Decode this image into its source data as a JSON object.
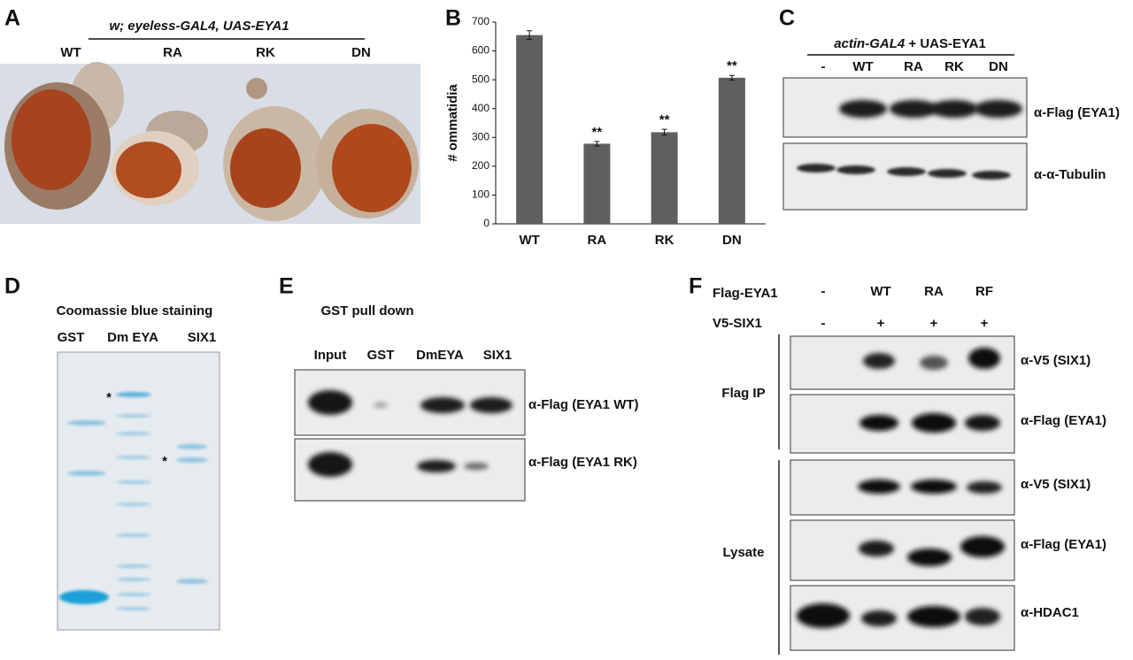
{
  "panels": {
    "a": {
      "label": "A",
      "genotype": "w; eyeless-GAL4, UAS-EYA1",
      "lanes": [
        "WT",
        "RA",
        "RK",
        "DN"
      ]
    },
    "c": {
      "label": "C",
      "genotype_italic": "actin-GAL4",
      "genotype_rest": "+ UAS-EYA1",
      "lanes": [
        "-",
        "WT",
        "RA",
        "RK",
        "DN"
      ],
      "blots": [
        "α-Flag (EYA1)",
        "α-α-Tubulin"
      ]
    },
    "d": {
      "label": "D",
      "title": "Coomassie blue staining",
      "lanes": [
        "GST",
        "Dm EYA",
        "SIX1"
      ],
      "markers": [
        "*",
        "*"
      ]
    },
    "e": {
      "label": "E",
      "title": "GST pull down",
      "lanes": [
        "Input",
        "GST",
        "DmEYA",
        "SIX1"
      ],
      "blots": [
        "α-Flag (EYA1 WT)",
        "α-Flag (EYA1 RK)"
      ]
    },
    "f": {
      "label": "F",
      "rows": [
        {
          "name": "Flag-EYA1",
          "lanes": [
            "-",
            "WT",
            "RA",
            "RF"
          ]
        },
        {
          "name": "V5-SIX1",
          "lanes": [
            "-",
            "+",
            "+",
            "+"
          ]
        }
      ],
      "groups": [
        "Flag IP",
        "Lysate"
      ],
      "blots": [
        "α-V5 (SIX1)",
        "α-Flag (EYA1)",
        "α-V5 (SIX1)",
        "α-Flag (EYA1)",
        "α-HDAC1"
      ]
    }
  },
  "chart_data": {
    "type": "bar",
    "panel_label": "B",
    "y_label": "# ommatidia",
    "categories": [
      "WT",
      "RA",
      "RK",
      "DN"
    ],
    "values": [
      655,
      278,
      318,
      507
    ],
    "errors": [
      15,
      8,
      10,
      8
    ],
    "significance": [
      null,
      "**",
      "**",
      "**"
    ],
    "color": "#5f5f5f",
    "ylim": [
      0,
      700
    ],
    "yticks": [
      0,
      100,
      200,
      300,
      400,
      500,
      600,
      700
    ],
    "grid": false
  }
}
